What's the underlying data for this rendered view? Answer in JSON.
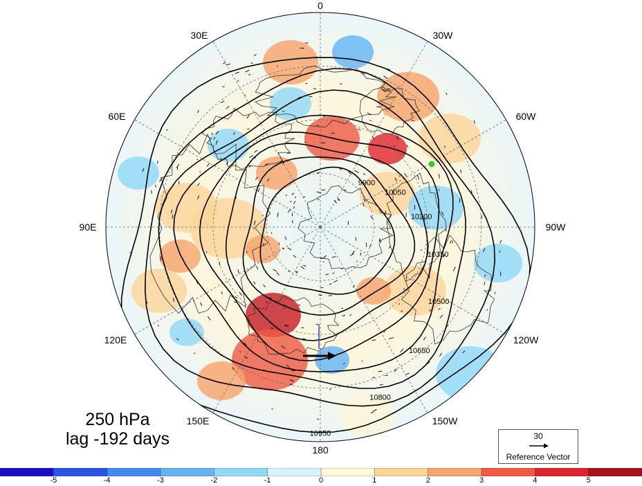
{
  "map": {
    "longitude_labels": [
      "0",
      "30W",
      "60W",
      "90W",
      "120W",
      "150W",
      "180",
      "150E",
      "120E",
      "90E",
      "60E",
      "30E"
    ],
    "contour_labels": [
      "9900",
      "10050",
      "10200",
      "10350",
      "10500",
      "10650",
      "10800",
      "10950"
    ],
    "marker_color": "#33cc33"
  },
  "title": {
    "level": "250 hPa",
    "lag": "lag -192 days"
  },
  "reference_vector": {
    "value": "30",
    "label": "Reference Vector"
  },
  "colorbar": {
    "labels": [
      "-5",
      "-4",
      "-3",
      "-2",
      "-1",
      "0",
      "1",
      "2",
      "3",
      "4",
      "5"
    ],
    "colors": [
      "#1a0fc8",
      "#2a55e6",
      "#3f8bf0",
      "#62b4f5",
      "#8fd8f8",
      "#d8f4fb",
      "#fdf6d8",
      "#fcd49a",
      "#f6a46a",
      "#ee5a43",
      "#e0242c",
      "#a8101a"
    ]
  }
}
